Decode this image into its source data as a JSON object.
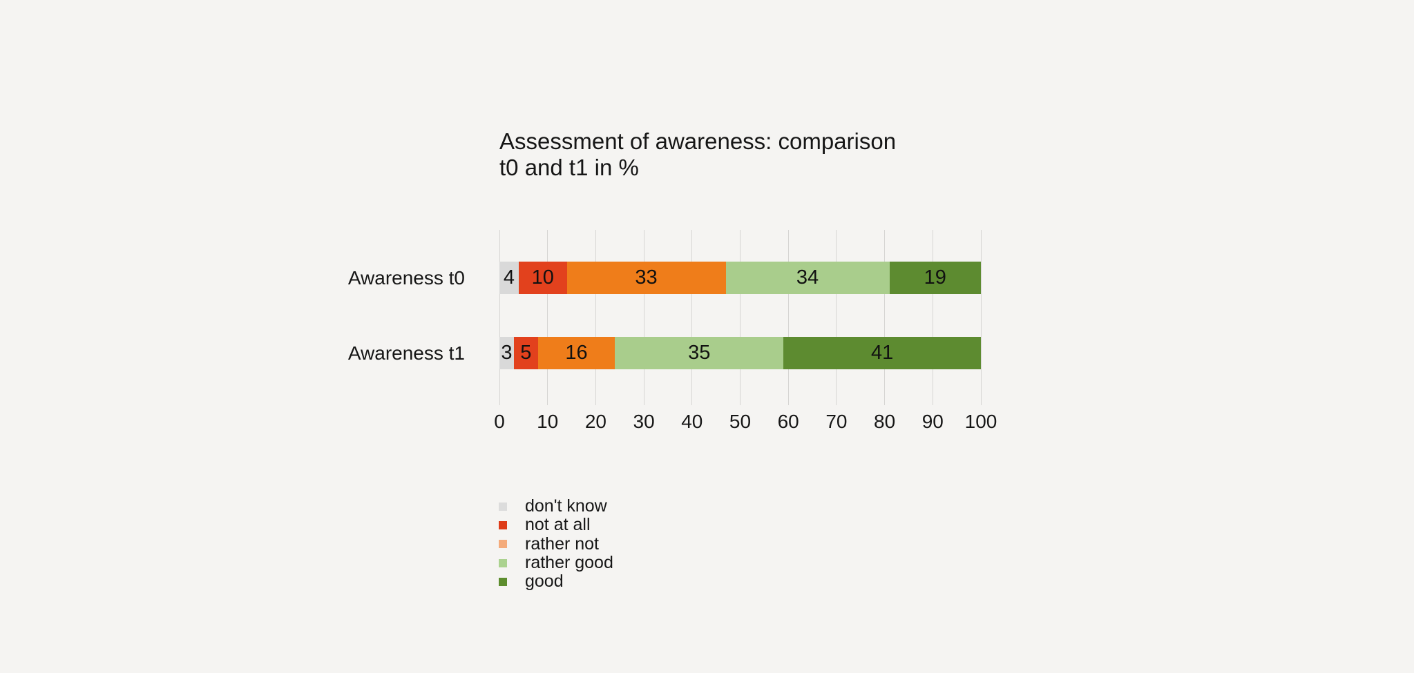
{
  "title": {
    "line1": "Assessment of awareness: comparison",
    "line2": "t0 and t1 in %"
  },
  "chart_data": {
    "type": "bar",
    "orientation": "horizontal",
    "stacked": true,
    "title": "Assessment of awareness: comparison t0 and t1 in %",
    "categories": [
      "Awareness t0",
      "Awareness t1"
    ],
    "series": [
      {
        "name": "don't know",
        "bar_color": "#d9d9d9",
        "legend_color": "#dcdcdc",
        "values": [
          4,
          3
        ]
      },
      {
        "name": "not at all",
        "bar_color": "#e2411d",
        "legend_color": "#de3c19",
        "values": [
          10,
          5
        ]
      },
      {
        "name": "rather not",
        "bar_color": "#ef7d1a",
        "legend_color": "#f4ab7b",
        "values": [
          33,
          16
        ]
      },
      {
        "name": "rather good",
        "bar_color": "#a9cd8c",
        "legend_color": "#abd28f",
        "values": [
          34,
          35
        ]
      },
      {
        "name": "good",
        "bar_color": "#5d8b30",
        "legend_color": "#5d8d2e",
        "values": [
          19,
          41
        ]
      }
    ],
    "x_axis": {
      "min": 0,
      "max": 100,
      "tick_interval": 10,
      "ticks": [
        0,
        10,
        20,
        30,
        40,
        50,
        60,
        70,
        80,
        90,
        100
      ]
    },
    "grid": true,
    "value_labels": "inside-center",
    "legend_position": "bottom-left",
    "colors": {
      "background": "#f5f4f2",
      "text": "#161616",
      "gridline": "#d6d5d3"
    }
  }
}
